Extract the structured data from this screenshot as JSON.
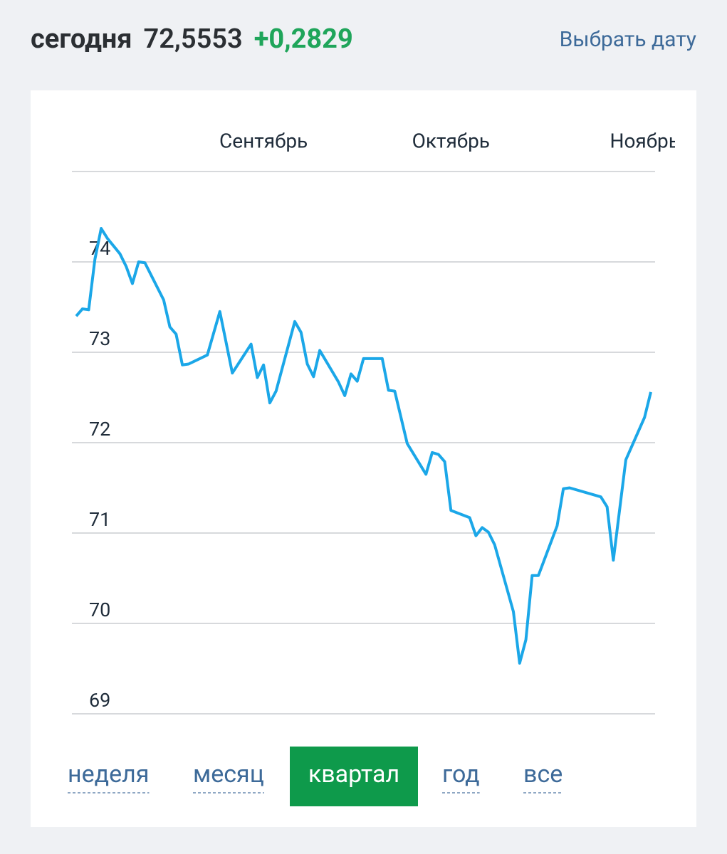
{
  "header": {
    "label": "сегодня",
    "rate": "72,5553",
    "change": "+0,2829",
    "date_button": "Выбрать дату"
  },
  "chart_data": {
    "type": "line",
    "x": [
      0,
      1,
      2,
      3,
      4,
      5,
      7,
      8,
      9,
      10,
      11,
      14,
      15,
      16,
      17,
      18,
      21,
      23,
      25,
      28,
      29,
      30,
      31,
      32,
      35,
      36,
      37,
      38,
      39,
      42,
      43,
      44,
      45,
      46,
      49,
      50,
      51,
      53,
      56,
      57,
      58,
      59,
      60,
      63,
      64,
      65,
      66,
      67,
      70,
      71,
      72,
      73,
      74,
      77,
      78,
      79,
      84,
      85,
      86,
      88,
      91,
      92
    ],
    "series": [
      {
        "color": "#1ba7e8",
        "values": [
          73.4,
          73.48,
          73.47,
          74.03,
          74.37,
          74.26,
          74.09,
          73.95,
          73.76,
          74.0,
          73.99,
          73.58,
          73.28,
          73.2,
          72.86,
          72.87,
          72.97,
          73.45,
          72.77,
          73.09,
          72.72,
          72.86,
          72.44,
          72.57,
          73.34,
          73.22,
          72.87,
          72.73,
          73.02,
          72.67,
          72.52,
          72.76,
          72.68,
          72.93,
          72.93,
          72.58,
          72.57,
          71.99,
          71.65,
          71.89,
          71.87,
          71.79,
          71.25,
          71.17,
          70.97,
          71.06,
          71.01,
          70.87,
          70.13,
          69.56,
          69.82,
          70.53,
          70.53,
          71.08,
          71.49,
          71.5,
          71.4,
          71.29,
          70.7,
          71.81,
          72.28,
          72.56
        ]
      }
    ],
    "xlim": [
      0,
      92
    ],
    "xticks": [
      {
        "value": 30,
        "label": "Сентябрь"
      },
      {
        "value": 60,
        "label": "Октябрь"
      },
      {
        "value": 91,
        "label": "Ноябрь"
      }
    ],
    "ylim": [
      69,
      75
    ],
    "yticks": [
      69,
      70,
      71,
      72,
      73,
      74
    ],
    "grid": true
  },
  "tabs": [
    {
      "label": "неделя",
      "selected": false
    },
    {
      "label": "месяц",
      "selected": false
    },
    {
      "label": "квартал",
      "selected": true
    },
    {
      "label": "год",
      "selected": false
    },
    {
      "label": "все",
      "selected": false
    }
  ]
}
